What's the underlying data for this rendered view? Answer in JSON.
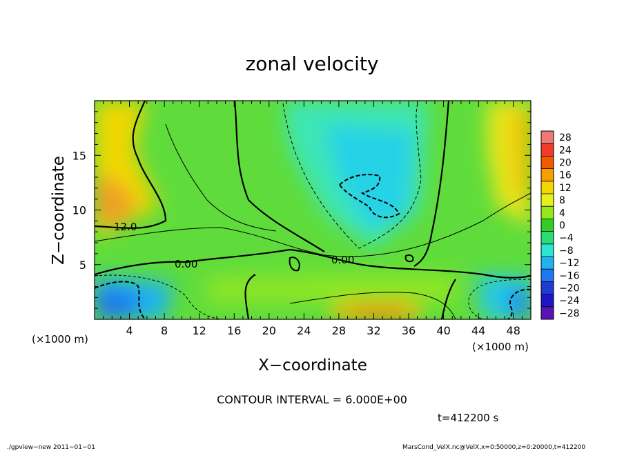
{
  "chart_data": {
    "type": "contour",
    "title": "zonal velocity",
    "xlabel": "X−coordinate",
    "ylabel": "Z−coordinate",
    "x_unit": "(×1000 m)",
    "y_unit": "(×1000 m)",
    "xlim": [
      0,
      50
    ],
    "ylim": [
      0,
      20
    ],
    "x_ticks": [
      4,
      8,
      12,
      16,
      20,
      24,
      28,
      32,
      36,
      40,
      44,
      48
    ],
    "y_ticks": [
      5,
      10,
      15
    ],
    "contour_interval_label": "CONTOUR INTERVAL = 6.000E+00",
    "time_label": "t=412200  s",
    "contour_labels": [
      "12.0",
      "0.00",
      "0.00"
    ],
    "colorbar": {
      "levels": [
        "28",
        "24",
        "20",
        "16",
        "12",
        "8",
        "4",
        "0",
        "−4",
        "−8",
        "−12",
        "−16",
        "−20",
        "−24",
        "−28"
      ],
      "colors": [
        "#f07878",
        "#f03c28",
        "#f05a00",
        "#f5a000",
        "#f5d700",
        "#e6f01e",
        "#96e61e",
        "#32cd28",
        "#28dc78",
        "#28e6d2",
        "#1eb4f0",
        "#1e78f0",
        "#1e3cd2",
        "#1e14c8",
        "#5a14b4"
      ]
    }
  },
  "footer": {
    "left": "./gpview−new  2011−01−01",
    "right": "MarsCond_VelX.nc@VelX,x=0:50000,z=0:20000,t=412200"
  }
}
